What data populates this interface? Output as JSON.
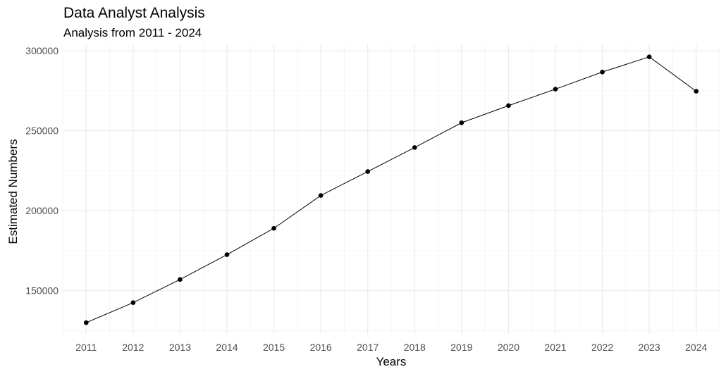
{
  "chart_data": {
    "type": "line",
    "title": "Data Analyst Analysis",
    "subtitle": "Analysis from 2011 - 2024",
    "xlabel": "Years",
    "ylabel": "Estimated Numbers",
    "x": [
      2011,
      2012,
      2013,
      2014,
      2015,
      2016,
      2017,
      2018,
      2019,
      2020,
      2021,
      2022,
      2023,
      2024
    ],
    "series": [
      {
        "values": [
          130000,
          142500,
          157000,
          172500,
          189000,
          209500,
          224500,
          239500,
          255000,
          265700,
          276000,
          286700,
          296200,
          274700
        ]
      }
    ],
    "yticks": [
      150000,
      200000,
      250000,
      300000
    ],
    "ytick_labels": [
      "150000",
      "200000",
      "250000",
      "300000"
    ],
    "xtick_labels": [
      "2011",
      "2012",
      "2013",
      "2014",
      "2015",
      "2016",
      "2017",
      "2018",
      "2019",
      "2020",
      "2021",
      "2022",
      "2023",
      "2024"
    ],
    "xlim": [
      2010.5,
      2024.5
    ],
    "ylim": [
      123000,
      304000
    ],
    "grid": true,
    "legend": "none",
    "colors": {
      "line": "#000000",
      "point": "#000000",
      "grid_major": "#ebebeb",
      "grid_minor": "#f5f5f5",
      "tick_text": "#4d4d4d"
    }
  }
}
